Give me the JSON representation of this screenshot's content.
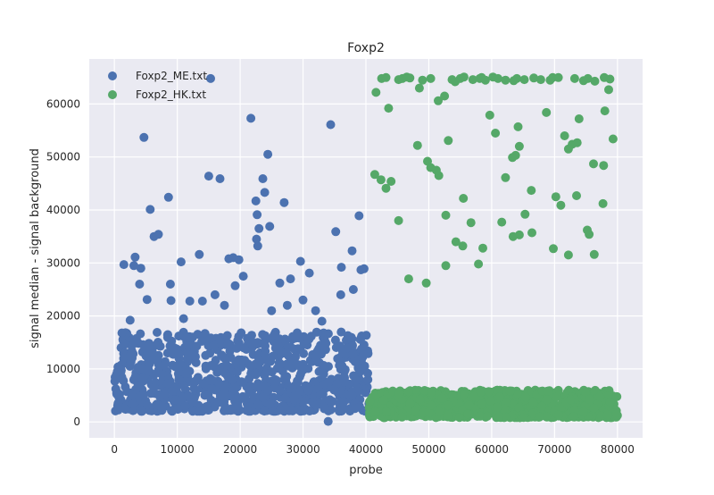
{
  "chart_data": {
    "type": "scatter",
    "title": "Foxp2",
    "xlabel": "probe",
    "ylabel": "signal median - signal background",
    "xlim": [
      -4000,
      84000
    ],
    "ylim": [
      -3000,
      68500
    ],
    "xticks": [
      0,
      10000,
      20000,
      30000,
      40000,
      50000,
      60000,
      70000,
      80000
    ],
    "yticks": [
      0,
      10000,
      20000,
      30000,
      40000,
      50000,
      60000
    ],
    "grid": true,
    "legend_position": "top-left",
    "series": [
      {
        "name": "Foxp2_ME.txt",
        "color": "#4c72b0",
        "x_range": [
          0,
          40500
        ],
        "dense_band": [
          2000,
          17000
        ],
        "outliers": [
          [
            4700,
            53700
          ],
          [
            5700,
            40100
          ],
          [
            6300,
            35000
          ],
          [
            7000,
            35400
          ],
          [
            8600,
            42400
          ],
          [
            8900,
            26000
          ],
          [
            4000,
            26000
          ],
          [
            4200,
            29000
          ],
          [
            3100,
            29500
          ],
          [
            3300,
            31100
          ],
          [
            1500,
            29700
          ],
          [
            10600,
            30200
          ],
          [
            13500,
            31600
          ],
          [
            15000,
            46400
          ],
          [
            15300,
            64800
          ],
          [
            16800,
            45900
          ],
          [
            18200,
            30800
          ],
          [
            18900,
            31000
          ],
          [
            19800,
            30600
          ],
          [
            19200,
            25700
          ],
          [
            21700,
            57300
          ],
          [
            22500,
            41700
          ],
          [
            22700,
            39100
          ],
          [
            23000,
            36500
          ],
          [
            22600,
            34500
          ],
          [
            22800,
            33200
          ],
          [
            23600,
            45900
          ],
          [
            24400,
            50500
          ],
          [
            23900,
            43300
          ],
          [
            24700,
            36900
          ],
          [
            27000,
            41400
          ],
          [
            29600,
            30300
          ],
          [
            31000,
            28100
          ],
          [
            34400,
            56100
          ],
          [
            35200,
            35900
          ],
          [
            36100,
            29200
          ],
          [
            37800,
            32300
          ],
          [
            38900,
            38900
          ],
          [
            39200,
            28700
          ],
          [
            39700,
            28900
          ],
          [
            34000,
            100
          ],
          [
            26300,
            26200
          ],
          [
            28000,
            27000
          ],
          [
            20500,
            27500
          ],
          [
            1200,
            16800
          ],
          [
            2500,
            19200
          ],
          [
            5200,
            23100
          ],
          [
            9000,
            22900
          ],
          [
            12000,
            22800
          ],
          [
            14000,
            22800
          ],
          [
            16000,
            24000
          ],
          [
            17500,
            22000
          ],
          [
            25000,
            21000
          ],
          [
            27500,
            22000
          ],
          [
            30000,
            23000
          ],
          [
            32000,
            21000
          ],
          [
            36000,
            24000
          ],
          [
            38000,
            25000
          ],
          [
            33000,
            19000
          ],
          [
            11000,
            19500
          ]
        ]
      },
      {
        "name": "Foxp2_HK.txt",
        "color": "#55a868",
        "x_range": [
          40500,
          80000
        ],
        "dense_band": [
          800,
          6000
        ],
        "outliers": [
          [
            41600,
            62200
          ],
          [
            42500,
            64800
          ],
          [
            43200,
            65000
          ],
          [
            43600,
            59200
          ],
          [
            45200,
            64600
          ],
          [
            45800,
            64800
          ],
          [
            46500,
            65100
          ],
          [
            47000,
            64900
          ],
          [
            48500,
            63000
          ],
          [
            49000,
            64500
          ],
          [
            50300,
            64800
          ],
          [
            51500,
            60600
          ],
          [
            52500,
            61500
          ],
          [
            53700,
            64600
          ],
          [
            54200,
            64200
          ],
          [
            55000,
            64800
          ],
          [
            55600,
            65100
          ],
          [
            57000,
            64600
          ],
          [
            58100,
            64800
          ],
          [
            58400,
            65000
          ],
          [
            59000,
            64500
          ],
          [
            60200,
            65100
          ],
          [
            61000,
            64800
          ],
          [
            62200,
            64500
          ],
          [
            63500,
            64400
          ],
          [
            64000,
            64800
          ],
          [
            65200,
            64600
          ],
          [
            66700,
            64900
          ],
          [
            67800,
            64600
          ],
          [
            69300,
            64500
          ],
          [
            69700,
            65000
          ],
          [
            70600,
            65000
          ],
          [
            73200,
            64800
          ],
          [
            74600,
            64400
          ],
          [
            75300,
            64800
          ],
          [
            76400,
            64300
          ],
          [
            77900,
            65000
          ],
          [
            78800,
            64700
          ],
          [
            48200,
            52200
          ],
          [
            49800,
            49200
          ],
          [
            50300,
            48000
          ],
          [
            51200,
            47500
          ],
          [
            51600,
            46500
          ],
          [
            53100,
            53100
          ],
          [
            44000,
            45400
          ],
          [
            43200,
            44100
          ],
          [
            42400,
            45700
          ],
          [
            41400,
            46700
          ],
          [
            45200,
            38000
          ],
          [
            52700,
            39000
          ],
          [
            55500,
            42200
          ],
          [
            56700,
            37600
          ],
          [
            59700,
            57900
          ],
          [
            60600,
            54500
          ],
          [
            62200,
            46100
          ],
          [
            63300,
            49900
          ],
          [
            63800,
            50300
          ],
          [
            64400,
            52000
          ],
          [
            64200,
            55700
          ],
          [
            65300,
            39200
          ],
          [
            66300,
            43700
          ],
          [
            68700,
            58400
          ],
          [
            70200,
            42500
          ],
          [
            71000,
            40900
          ],
          [
            71600,
            54000
          ],
          [
            72200,
            51500
          ],
          [
            72800,
            52400
          ],
          [
            73600,
            52700
          ],
          [
            73900,
            57200
          ],
          [
            73500,
            42700
          ],
          [
            75500,
            35400
          ],
          [
            76300,
            31600
          ],
          [
            76200,
            48700
          ],
          [
            77800,
            48400
          ],
          [
            78600,
            62700
          ],
          [
            79300,
            53400
          ],
          [
            78000,
            58700
          ],
          [
            77700,
            41200
          ],
          [
            75200,
            36200
          ],
          [
            72200,
            31500
          ],
          [
            69800,
            32700
          ],
          [
            66400,
            35700
          ],
          [
            64400,
            35300
          ],
          [
            63400,
            35000
          ],
          [
            61600,
            37700
          ],
          [
            58600,
            32800
          ],
          [
            55400,
            33200
          ],
          [
            54300,
            34000
          ],
          [
            46800,
            27000
          ],
          [
            49600,
            26200
          ],
          [
            52700,
            29500
          ],
          [
            57900,
            29800
          ]
        ]
      }
    ]
  }
}
